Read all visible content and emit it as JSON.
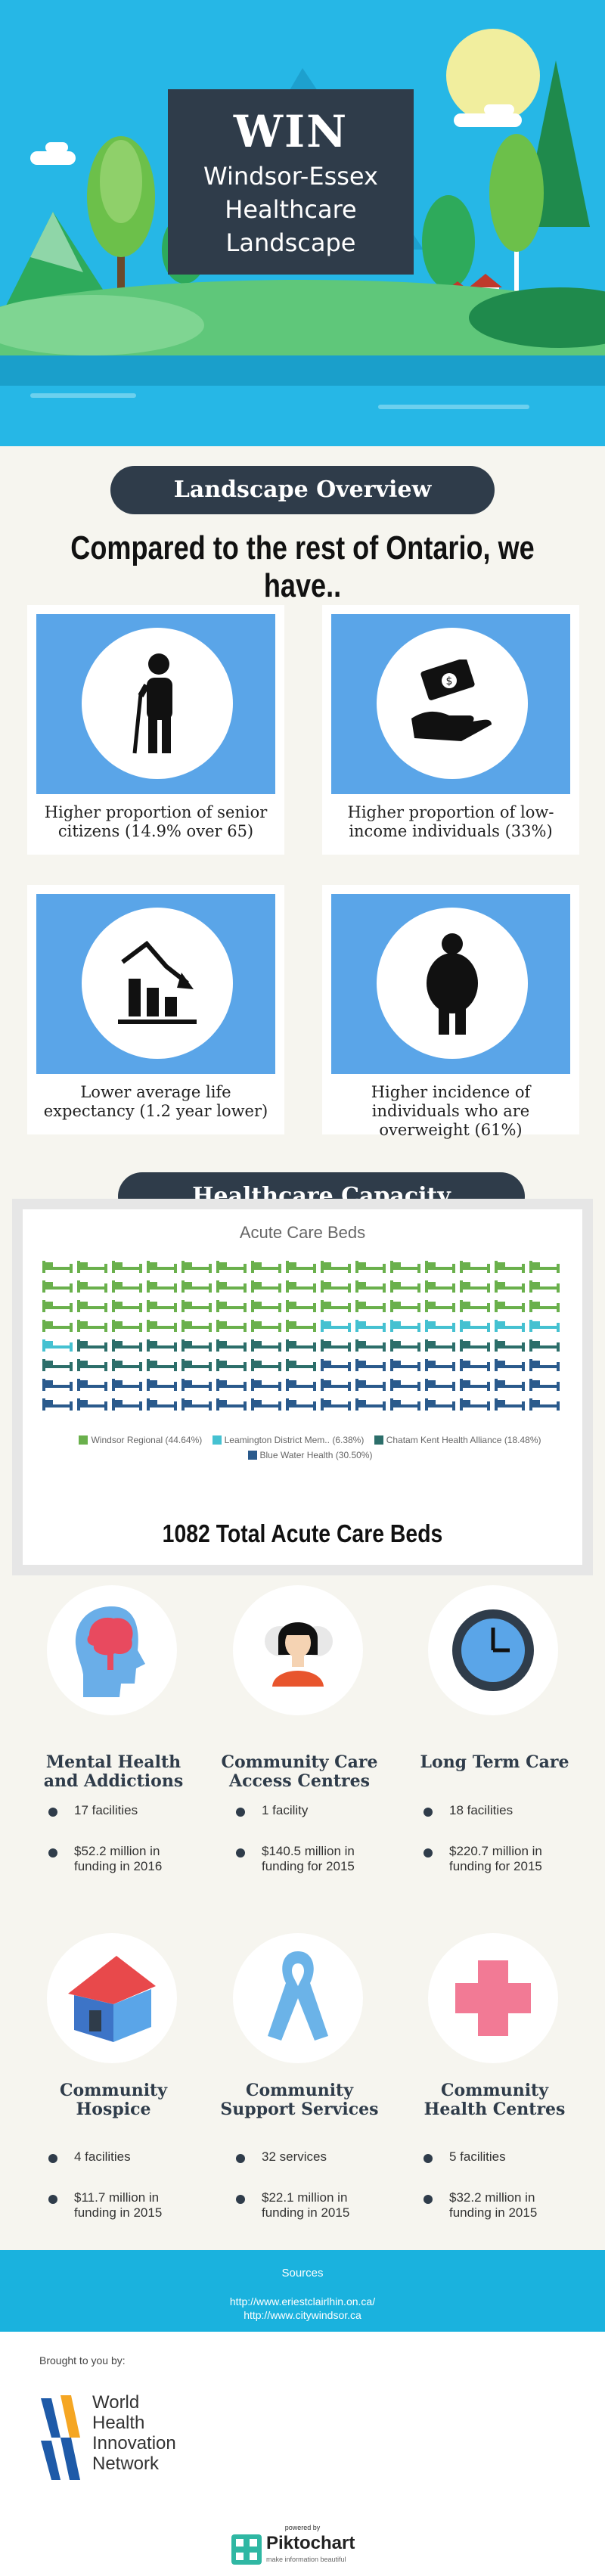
{
  "hero": {
    "title": "WIN",
    "subtitle_lines": [
      "Windsor-Essex",
      "Healthcare",
      "Landscape"
    ]
  },
  "overview": {
    "banner": "Landscape Overview",
    "compare": "Compared to the rest of Ontario, we have..",
    "cards": [
      {
        "icon": "senior-person-icon",
        "label": "Higher proportion of senior citizens (14.9% over 65)"
      },
      {
        "icon": "money-hand-icon",
        "label": "Higher proportion of low-income individuals (33%)"
      },
      {
        "icon": "declining-chart-icon",
        "label": "Lower average life expectancy (1.2 year lower)"
      },
      {
        "icon": "overweight-person-icon",
        "label": "Higher incidence of individuals who are overweight (61%)"
      }
    ]
  },
  "capacity": {
    "banner": "Healthcare Capacity",
    "chart_data": {
      "type": "pictograph",
      "title": "Acute Care Beds",
      "total_label": "1082 Total Acute Care Beds",
      "series": [
        {
          "name": "Windsor Regional",
          "share_label": "(44.64%)",
          "value": 44.64,
          "color": "#6ab04c"
        },
        {
          "name": "Leamington District Mem..",
          "share_label": "(6.38%)",
          "value": 6.38,
          "color": "#45c1d1"
        },
        {
          "name": "Chatam Kent Health Alliance",
          "share_label": "(18.48%)",
          "value": 18.48,
          "color": "#2c6e6a"
        },
        {
          "name": "Blue Water Health",
          "share_label": "(30.50%)",
          "value": 30.5,
          "color": "#2a5a8c"
        }
      ],
      "legend_position": "bottom"
    }
  },
  "services": [
    {
      "icon": "brain-head-icon",
      "title": "Mental Health and Addictions",
      "facilities": "17 facilities",
      "funding": "$52.2 million in funding in 2016"
    },
    {
      "icon": "person-support-icon",
      "title": "Community Care Access Centres",
      "facilities": "1 facility",
      "funding": "$140.5 million in funding for 2015"
    },
    {
      "icon": "clock-icon",
      "title": "Long Term Care",
      "facilities": "18 facilities",
      "funding": "$220.7 million in funding for 2015"
    },
    {
      "icon": "house-icon",
      "title": "Community Hospice",
      "facilities": "4 facilities",
      "funding": "$11.7 million in funding in 2015"
    },
    {
      "icon": "ribbon-icon",
      "title": "Community Support Services",
      "facilities": "32 services",
      "funding": "$22.1 million in funding in 2015"
    },
    {
      "icon": "medical-cross-icon",
      "title": "Community Health Centres",
      "facilities": "5 facilities",
      "funding": "$32.2 million in funding in 2015"
    }
  ],
  "sources": {
    "heading": "Sources",
    "links": [
      "http://www.eriestclairlhin.on.ca/",
      "http://www.citywindsor.ca"
    ]
  },
  "footer": {
    "brought": "Brought to you by:",
    "org_lines": [
      "World",
      "Health",
      "Innovation",
      "Network"
    ],
    "powered": "powered by",
    "brand": "Piktochart",
    "tagline": "make information beautiful"
  }
}
